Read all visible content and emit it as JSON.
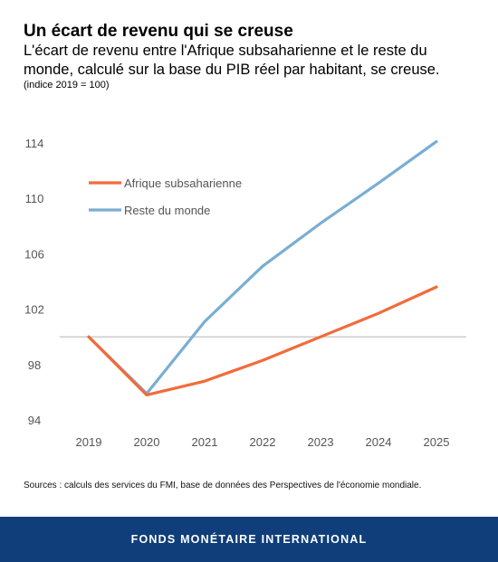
{
  "header": {
    "title": "Un écart de revenu qui se creuse",
    "subtitle": "L'écart de revenu entre l'Afrique subsaharienne et le reste du monde, calculé sur la base du PIB réel par habitant, se creuse.",
    "note": "(indice 2019 = 100)"
  },
  "chart_data": {
    "type": "line",
    "x": [
      "2019",
      "2020",
      "2021",
      "2022",
      "2023",
      "2024",
      "2025"
    ],
    "series": [
      {
        "name": "Afrique subsaharienne",
        "color": "#f26b3a",
        "values": [
          100.0,
          95.8,
          96.8,
          98.3,
          100.0,
          101.7,
          103.6
        ]
      },
      {
        "name": "Reste du monde",
        "color": "#7aaed2",
        "values": [
          100.0,
          95.9,
          101.1,
          105.1,
          108.2,
          111.1,
          114.1
        ]
      }
    ],
    "ylim": [
      94,
      114
    ],
    "yticks": [
      94,
      98,
      102,
      106,
      110,
      114
    ],
    "reference_line": 100,
    "legend_position": "top-left",
    "grid": false
  },
  "sources": "Sources : calculs des services du FMI, base de données des Perspectives de l'économie mondiale.",
  "footer": {
    "label": "FONDS MONÉTAIRE INTERNATIONAL"
  }
}
